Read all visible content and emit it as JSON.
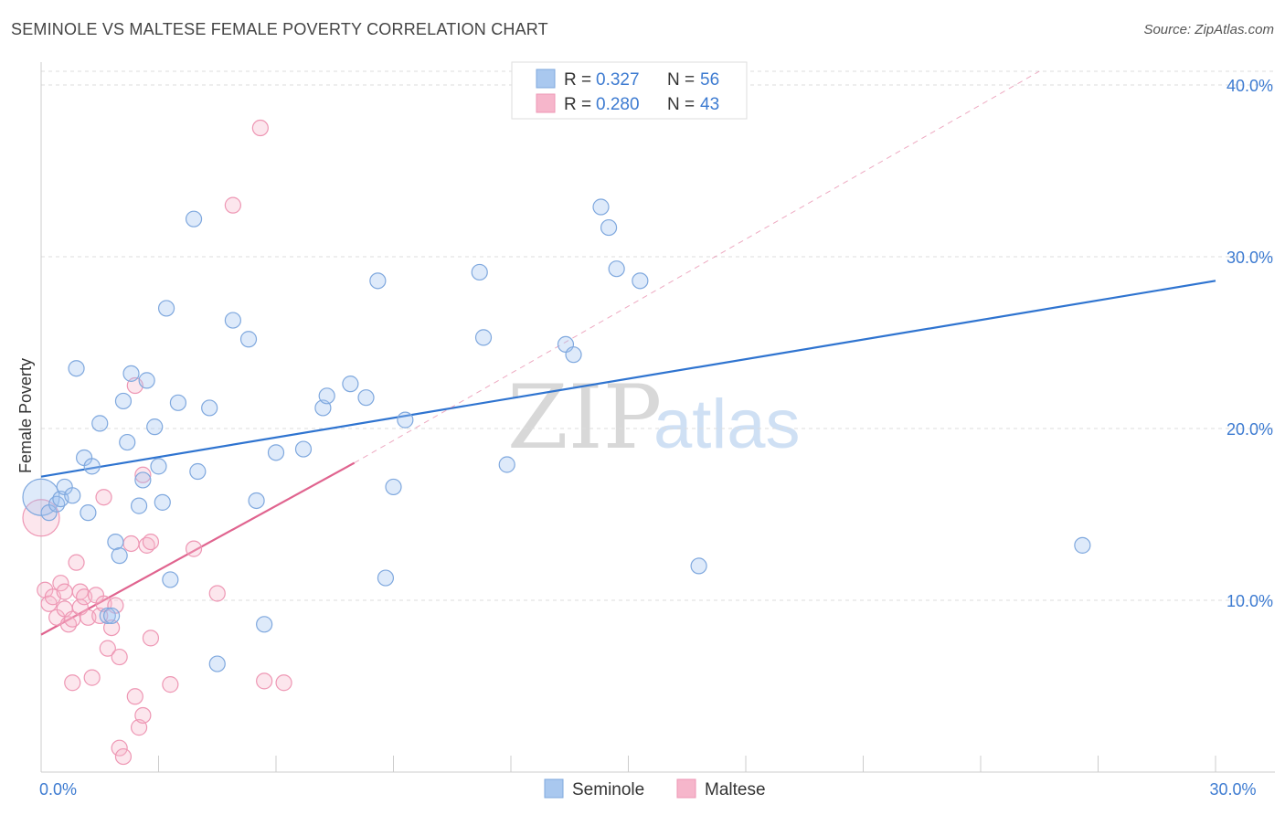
{
  "header": {
    "title": "SEMINOLE VS MALTESE FEMALE POVERTY CORRELATION CHART",
    "source": "Source: ZipAtlas.com"
  },
  "legend": {
    "rows": [
      {
        "r_label": "R =",
        "r_value": "0.327",
        "n_label": "N =",
        "n_value": "56",
        "color": "#a9c8ef"
      },
      {
        "r_label": "R =",
        "r_value": "0.280",
        "n_label": "N =",
        "n_value": "43",
        "color": "#f6b6cb"
      }
    ]
  },
  "bottom_legend": {
    "items": [
      {
        "label": "Seminole",
        "color": "#a9c8ef"
      },
      {
        "label": "Maltese",
        "color": "#f6b6cb"
      }
    ]
  },
  "watermark": {
    "zip": "ZIP",
    "atlas": "atlas"
  },
  "colors": {
    "seminole_fill": "rgba(160,196,240,0.35)",
    "seminole_stroke": "#7fa8de",
    "seminole_line": "#2f74d0",
    "maltese_fill": "rgba(246,182,203,0.35)",
    "maltese_stroke": "#ee97b4",
    "maltese_line": "#e0648f",
    "grid": "#dddddd",
    "tick_text": "#3d7bd1"
  },
  "chart_data": {
    "type": "scatter",
    "title": "SEMINOLE VS MALTESE FEMALE POVERTY CORRELATION CHART",
    "xlabel": "",
    "ylabel": "Female Poverty",
    "xlim": [
      0,
      30
    ],
    "ylim": [
      0,
      40.8
    ],
    "x_tick_labels": [
      {
        "value": 0,
        "label": "0.0%"
      },
      {
        "value": 30,
        "label": "30.0%"
      }
    ],
    "y_tick_labels": [
      {
        "value": 10,
        "label": "10.0%"
      },
      {
        "value": 20,
        "label": "20.0%"
      },
      {
        "value": 30,
        "label": "30.0%"
      },
      {
        "value": 40,
        "label": "40.0%"
      }
    ],
    "grid": true,
    "legend_position": "top-center",
    "series": [
      {
        "name": "Seminole",
        "r": 0.327,
        "n": 56,
        "trend": {
          "x": [
            0,
            30
          ],
          "y": [
            17.2,
            28.6
          ],
          "style": "solid"
        },
        "points": [
          {
            "x": 0.0,
            "y": 16.0,
            "big": true
          },
          {
            "x": 0.2,
            "y": 15.1
          },
          {
            "x": 0.4,
            "y": 15.6
          },
          {
            "x": 0.5,
            "y": 15.9
          },
          {
            "x": 0.6,
            "y": 16.6
          },
          {
            "x": 0.8,
            "y": 16.1
          },
          {
            "x": 0.9,
            "y": 23.5
          },
          {
            "x": 1.1,
            "y": 18.3
          },
          {
            "x": 1.2,
            "y": 15.1
          },
          {
            "x": 1.3,
            "y": 17.8
          },
          {
            "x": 1.5,
            "y": 20.3
          },
          {
            "x": 1.7,
            "y": 9.1
          },
          {
            "x": 1.8,
            "y": 9.1
          },
          {
            "x": 1.9,
            "y": 13.4
          },
          {
            "x": 2.0,
            "y": 12.6
          },
          {
            "x": 2.1,
            "y": 21.6
          },
          {
            "x": 2.2,
            "y": 19.2
          },
          {
            "x": 2.3,
            "y": 23.2
          },
          {
            "x": 2.5,
            "y": 15.5
          },
          {
            "x": 2.6,
            "y": 17.0
          },
          {
            "x": 2.7,
            "y": 22.8
          },
          {
            "x": 2.9,
            "y": 20.1
          },
          {
            "x": 3.0,
            "y": 17.8
          },
          {
            "x": 3.1,
            "y": 15.7
          },
          {
            "x": 3.2,
            "y": 27.0
          },
          {
            "x": 3.3,
            "y": 11.2
          },
          {
            "x": 3.5,
            "y": 21.5
          },
          {
            "x": 3.9,
            "y": 32.2
          },
          {
            "x": 4.0,
            "y": 17.5
          },
          {
            "x": 4.3,
            "y": 21.2
          },
          {
            "x": 4.5,
            "y": 6.3
          },
          {
            "x": 4.9,
            "y": 26.3
          },
          {
            "x": 5.3,
            "y": 25.2
          },
          {
            "x": 5.5,
            "y": 15.8
          },
          {
            "x": 5.7,
            "y": 8.6
          },
          {
            "x": 6.0,
            "y": 18.6
          },
          {
            "x": 6.7,
            "y": 18.8
          },
          {
            "x": 7.2,
            "y": 21.2
          },
          {
            "x": 7.3,
            "y": 21.9
          },
          {
            "x": 7.9,
            "y": 22.6
          },
          {
            "x": 8.3,
            "y": 21.8
          },
          {
            "x": 8.6,
            "y": 28.6
          },
          {
            "x": 8.8,
            "y": 11.3
          },
          {
            "x": 9.0,
            "y": 16.6
          },
          {
            "x": 9.3,
            "y": 20.5
          },
          {
            "x": 11.2,
            "y": 29.1
          },
          {
            "x": 11.3,
            "y": 25.3
          },
          {
            "x": 11.9,
            "y": 17.9
          },
          {
            "x": 13.4,
            "y": 24.9
          },
          {
            "x": 13.6,
            "y": 24.3
          },
          {
            "x": 14.3,
            "y": 32.9
          },
          {
            "x": 14.5,
            "y": 31.7
          },
          {
            "x": 14.7,
            "y": 29.3
          },
          {
            "x": 15.3,
            "y": 28.6
          },
          {
            "x": 16.8,
            "y": 12.0
          },
          {
            "x": 26.6,
            "y": 13.2
          }
        ]
      },
      {
        "name": "Maltese",
        "r": 0.28,
        "n": 43,
        "trend": {
          "x": [
            0,
            8.0
          ],
          "y": [
            8.0,
            18.0
          ],
          "style": "solid",
          "dashed_extension_to": {
            "x": 25.5,
            "y": 40.8
          }
        },
        "points": [
          {
            "x": 0.0,
            "y": 14.8,
            "big": true
          },
          {
            "x": 0.1,
            "y": 10.6
          },
          {
            "x": 0.2,
            "y": 9.8
          },
          {
            "x": 0.3,
            "y": 10.2
          },
          {
            "x": 0.4,
            "y": 9.0
          },
          {
            "x": 0.5,
            "y": 11.0
          },
          {
            "x": 0.6,
            "y": 9.5
          },
          {
            "x": 0.6,
            "y": 10.5
          },
          {
            "x": 0.7,
            "y": 8.6
          },
          {
            "x": 0.8,
            "y": 8.9
          },
          {
            "x": 0.8,
            "y": 5.2
          },
          {
            "x": 0.9,
            "y": 12.2
          },
          {
            "x": 1.0,
            "y": 9.6
          },
          {
            "x": 1.0,
            "y": 10.5
          },
          {
            "x": 1.1,
            "y": 10.2
          },
          {
            "x": 1.2,
            "y": 9.0
          },
          {
            "x": 1.3,
            "y": 5.5
          },
          {
            "x": 1.4,
            "y": 10.3
          },
          {
            "x": 1.5,
            "y": 9.1
          },
          {
            "x": 1.6,
            "y": 16.0
          },
          {
            "x": 1.6,
            "y": 9.8
          },
          {
            "x": 1.7,
            "y": 7.2
          },
          {
            "x": 1.8,
            "y": 8.4
          },
          {
            "x": 1.9,
            "y": 9.7
          },
          {
            "x": 2.0,
            "y": 6.7
          },
          {
            "x": 2.0,
            "y": 1.4
          },
          {
            "x": 2.1,
            "y": 0.9
          },
          {
            "x": 2.3,
            "y": 13.3
          },
          {
            "x": 2.4,
            "y": 4.4
          },
          {
            "x": 2.4,
            "y": 22.5
          },
          {
            "x": 2.5,
            "y": 2.6
          },
          {
            "x": 2.6,
            "y": 3.3
          },
          {
            "x": 2.6,
            "y": 17.3
          },
          {
            "x": 2.7,
            "y": 13.2
          },
          {
            "x": 2.8,
            "y": 13.4
          },
          {
            "x": 2.8,
            "y": 7.8
          },
          {
            "x": 3.3,
            "y": 5.1
          },
          {
            "x": 3.9,
            "y": 13.0
          },
          {
            "x": 4.5,
            "y": 10.4
          },
          {
            "x": 4.9,
            "y": 33.0
          },
          {
            "x": 5.6,
            "y": 37.5
          },
          {
            "x": 5.7,
            "y": 5.3
          },
          {
            "x": 6.2,
            "y": 5.2
          }
        ]
      }
    ]
  }
}
